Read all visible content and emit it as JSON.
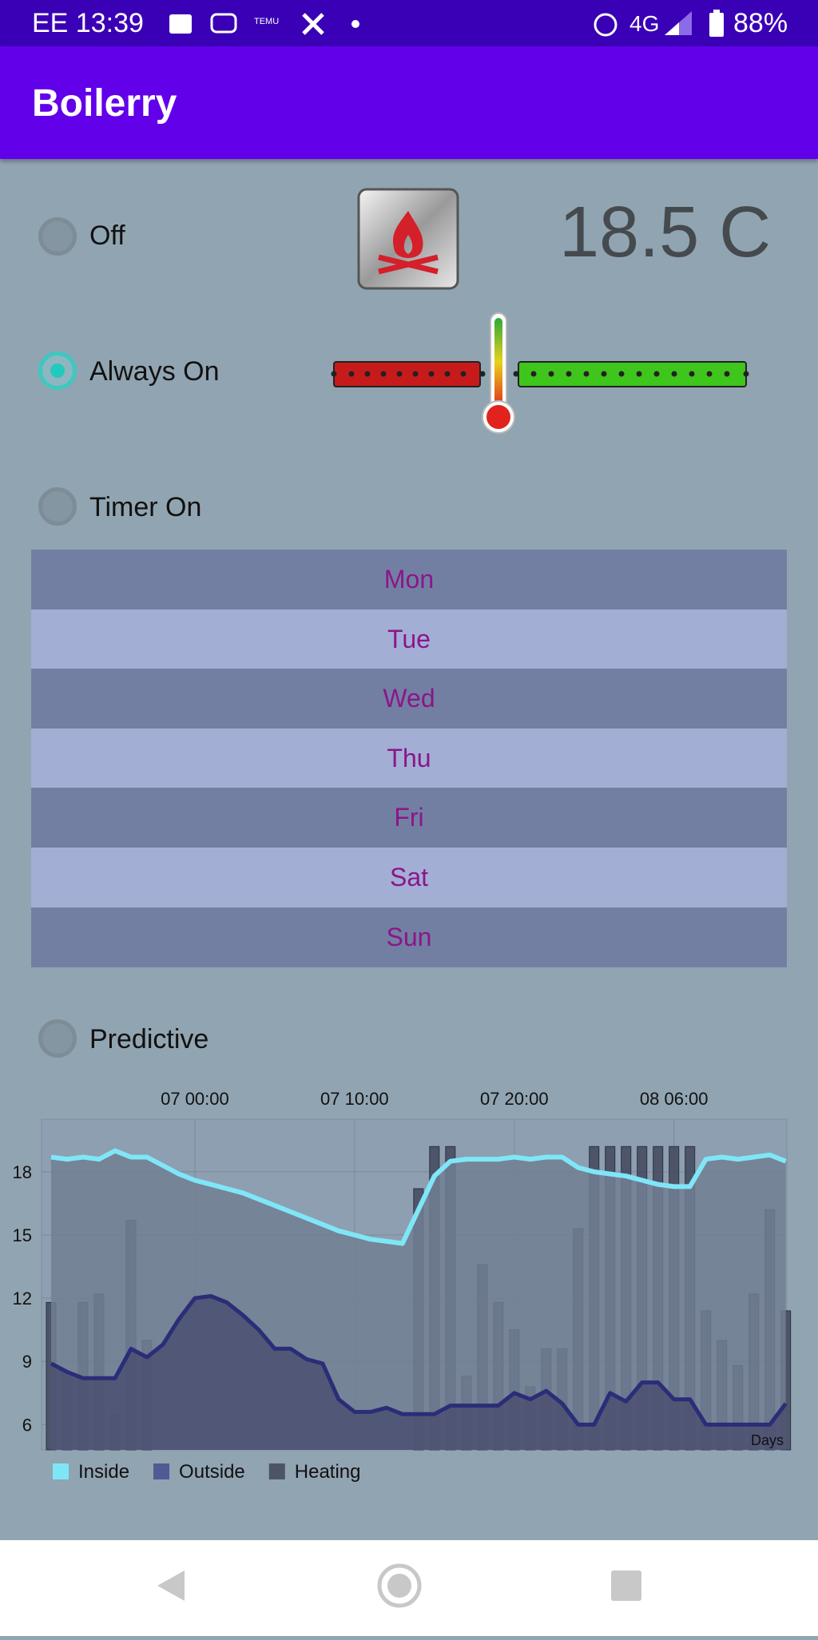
{
  "status_bar": {
    "carrier_time": "EE 13:39",
    "network": "4G",
    "battery": "88%"
  },
  "app_bar": {
    "title": "Boilerry"
  },
  "modes": {
    "off": "Off",
    "always_on": "Always On",
    "timer_on": "Timer On",
    "predictive": "Predictive"
  },
  "temperature": "18.5 C",
  "days": [
    "Mon",
    "Tue",
    "Wed",
    "Thu",
    "Fri",
    "Sat",
    "Sun"
  ],
  "chart_data": {
    "type": "line",
    "x_label": "Days",
    "x": [
      "06 15:00",
      "06 16:00",
      "06 17:00",
      "06 18:00",
      "06 19:00",
      "06 20:00",
      "06 21:00",
      "06 22:00",
      "06 23:00",
      "07 00:00",
      "07 01:00",
      "07 02:00",
      "07 03:00",
      "07 04:00",
      "07 05:00",
      "07 06:00",
      "07 07:00",
      "07 08:00",
      "07 09:00",
      "07 10:00",
      "07 11:00",
      "07 12:00",
      "07 13:00",
      "07 14:00",
      "07 15:00",
      "07 16:00",
      "07 17:00",
      "07 18:00",
      "07 19:00",
      "07 20:00",
      "07 21:00",
      "07 22:00",
      "07 23:00",
      "08 00:00",
      "08 01:00",
      "08 02:00",
      "08 03:00",
      "08 04:00",
      "08 05:00",
      "08 06:00",
      "08 07:00",
      "08 08:00",
      "08 09:00",
      "08 10:00",
      "08 11:00",
      "08 12:00",
      "08 13:00"
    ],
    "xlim": [
      "06 14:24",
      "08 13:04"
    ],
    "xticks": [
      "07 00:00",
      "07 10:00",
      "07 20:00",
      "08 06:00"
    ],
    "ylim": [
      4.8,
      20.5
    ],
    "yticks": [
      6,
      9,
      12,
      15,
      18
    ],
    "grid": true,
    "legend": "bottom-left",
    "series": [
      {
        "name": "Inside",
        "color": "#7fe6f7",
        "mark": "area-line",
        "values": [
          18.7,
          18.6,
          18.7,
          18.6,
          19.0,
          18.7,
          18.7,
          18.3,
          17.9,
          17.6,
          17.4,
          17.2,
          17.0,
          16.7,
          16.4,
          16.1,
          15.8,
          15.5,
          15.2,
          15.0,
          14.8,
          14.7,
          14.6,
          16.2,
          17.8,
          18.5,
          18.6,
          18.6,
          18.6,
          18.7,
          18.6,
          18.7,
          18.7,
          18.2,
          18.0,
          17.9,
          17.8,
          17.6,
          17.4,
          17.3,
          17.3,
          18.6,
          18.7,
          18.6,
          18.7,
          18.8,
          18.5
        ]
      },
      {
        "name": "Outside",
        "color": "#2b2d78",
        "mark": "area-line",
        "values": [
          8.9,
          8.5,
          8.2,
          8.2,
          8.2,
          9.6,
          9.2,
          9.8,
          11.0,
          12.0,
          12.1,
          11.8,
          11.2,
          10.5,
          9.6,
          9.6,
          9.1,
          8.9,
          7.2,
          6.6,
          6.6,
          6.8,
          6.5,
          6.5,
          6.5,
          6.9,
          6.9,
          6.9,
          6.9,
          7.5,
          7.2,
          7.6,
          7.0,
          6.0,
          6.0,
          7.5,
          7.1,
          8.0,
          8.0,
          7.2,
          7.2,
          6.0,
          6.0,
          6.0,
          6.0,
          6.0,
          7.0
        ]
      },
      {
        "name": "Heating",
        "color": "#3d4259",
        "mark": "bar",
        "values": [
          11.8,
          8.5,
          11.8,
          12.2,
          6.5,
          15.7,
          10.0,
          null,
          null,
          null,
          null,
          null,
          null,
          null,
          null,
          null,
          null,
          null,
          null,
          null,
          null,
          null,
          null,
          17.2,
          19.2,
          19.2,
          8.3,
          13.6,
          11.8,
          10.5,
          7.8,
          9.6,
          9.6,
          15.3,
          19.2,
          19.2,
          19.2,
          19.2,
          19.2,
          19.2,
          19.2,
          11.4,
          10.0,
          8.8,
          12.2,
          16.2,
          11.4
        ]
      }
    ]
  }
}
